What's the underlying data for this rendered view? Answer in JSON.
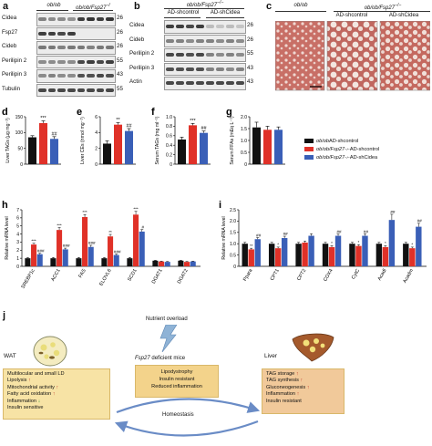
{
  "panels": {
    "a": {
      "letter": "a",
      "header_left": "ob/ob",
      "header_right": "ob/ob/Fsp27",
      "header_right_sup": "−/−",
      "rows": [
        "Cidea",
        "Fsp27",
        "Cideb",
        "Perilipin 2",
        "Perilipin 3",
        "Tubulin"
      ],
      "kda": [
        "26",
        "26",
        "26",
        "55",
        "43",
        "55"
      ]
    },
    "b": {
      "letter": "b",
      "header_top": "ob/ob/Fsp27",
      "header_top_sup": "−/−",
      "header_left": "AD-shcontrol",
      "header_right": "AD-shCidea",
      "rows": [
        "Cidea",
        "Cideb",
        "Perilipin 2",
        "Perilipin 3",
        "Actin"
      ],
      "kda": [
        "26",
        "26",
        "55",
        "43",
        "43"
      ]
    },
    "c": {
      "letter": "c",
      "header_left": "ob/ob",
      "header_right": "ob/ob/Fsp27",
      "header_right_sup": "−/−",
      "sub_left": "AD-shcontrol",
      "sub_right": "AD-shCidea"
    },
    "d": {
      "letter": "d",
      "ylabel": "Liver TAGs (µg mg⁻¹)",
      "yticks": [
        "0",
        "50",
        "100",
        "150"
      ],
      "ymax": 150,
      "values": [
        85,
        130,
        80
      ],
      "errors": [
        5,
        7,
        7
      ],
      "sig": [
        "",
        "***",
        "##"
      ]
    },
    "e": {
      "letter": "e",
      "ylabel": "Liver CEs (nmol mg⁻¹)",
      "yticks": [
        "0",
        "2",
        "4",
        "6"
      ],
      "ymax": 6,
      "values": [
        2.6,
        5.0,
        4.2
      ],
      "errors": [
        0.35,
        0.25,
        0.3
      ],
      "sig": [
        "",
        "**",
        "##"
      ]
    },
    "f": {
      "letter": "f",
      "ylabel": "Serum TAGs (mg ml⁻¹)",
      "yticks": [
        "0",
        "0.2",
        "0.4",
        "0.6",
        "0.8",
        "1.0"
      ],
      "ymax": 1.0,
      "values": [
        0.52,
        0.82,
        0.66
      ],
      "errors": [
        0.05,
        0.04,
        0.04
      ],
      "sig": [
        "",
        "***",
        "##"
      ]
    },
    "g": {
      "letter": "g",
      "ylabel": "Serum FFAs (mEq L⁻¹)",
      "yticks": [
        "0",
        "0.5",
        "1.0",
        "1.5",
        "2.0"
      ],
      "ymax": 2.0,
      "values": [
        1.55,
        1.45,
        1.45
      ],
      "errors": [
        0.22,
        0.15,
        0.12
      ],
      "sig": [
        "",
        "",
        ""
      ]
    },
    "legend": {
      "items": [
        {
          "prefix": "ob/ob",
          "suffix": " AD-shcontrol",
          "color": "#111111"
        },
        {
          "prefix": "ob/ob/Fsp27",
          "sup": "−/−",
          "suffix": " AD-shcontrol",
          "color": "#e03128"
        },
        {
          "prefix": "ob/ob/Fsp27",
          "sup": "−/−",
          "suffix": " AD-shCidea",
          "color": "#3a5fb7"
        }
      ]
    },
    "h": {
      "letter": "h",
      "ylabel": "Relative mRNA level",
      "yticks": [
        "0",
        "1",
        "2",
        "3",
        "4",
        "5",
        "6",
        "7"
      ],
      "ymax": 7,
      "genes": [
        "SREBP1c",
        "ACC1",
        "FAS",
        "ELOVL6",
        "SCD1",
        "DGAT1",
        "DGAT2"
      ],
      "values": [
        [
          1.0,
          2.7,
          1.5
        ],
        [
          1.0,
          4.5,
          2.1
        ],
        [
          1.0,
          6.1,
          2.4
        ],
        [
          1.0,
          3.7,
          1.4
        ],
        [
          1.0,
          6.4,
          4.3
        ],
        [
          0.7,
          0.6,
          0.55
        ],
        [
          0.7,
          0.55,
          0.6
        ]
      ],
      "errors": [
        [
          0.08,
          0.15,
          0.12
        ],
        [
          0.1,
          0.3,
          0.15
        ],
        [
          0.1,
          0.3,
          0.2
        ],
        [
          0.08,
          0.25,
          0.12
        ],
        [
          0.1,
          0.4,
          0.25
        ],
        [
          0.05,
          0.05,
          0.05
        ],
        [
          0.05,
          0.05,
          0.05
        ]
      ],
      "sig_red": [
        "***",
        "***",
        "***",
        "**",
        "***",
        "",
        ""
      ],
      "sig_blue": [
        "###",
        "###",
        "###",
        "###",
        "#",
        "",
        ""
      ]
    },
    "i": {
      "letter": "i",
      "ylabel": "Relative mRNA level",
      "yticks": [
        "0",
        "0.5",
        "1.0",
        "1.5",
        "2.0",
        "2.5"
      ],
      "ymax": 2.5,
      "genes": [
        "Ppara",
        "CPT1",
        "CPT2",
        "COX4",
        "CytC",
        "Acadl",
        "Acadm"
      ],
      "values": [
        [
          1.0,
          0.75,
          1.2
        ],
        [
          1.0,
          0.8,
          1.25
        ],
        [
          1.0,
          1.05,
          1.35
        ],
        [
          1.0,
          0.85,
          1.35
        ],
        [
          1.0,
          0.9,
          1.35
        ],
        [
          1.0,
          0.85,
          2.05
        ],
        [
          1.0,
          0.8,
          1.75
        ]
      ],
      "errors": [
        [
          0.06,
          0.05,
          0.07
        ],
        [
          0.06,
          0.05,
          0.08
        ],
        [
          0.06,
          0.07,
          0.09
        ],
        [
          0.06,
          0.06,
          0.08
        ],
        [
          0.06,
          0.06,
          0.08
        ],
        [
          0.06,
          0.06,
          0.25
        ],
        [
          0.06,
          0.05,
          0.15
        ]
      ],
      "sig_red": [
        "**",
        "*",
        "",
        "*",
        "*",
        "*",
        "*"
      ],
      "sig_blue": [
        "##",
        "##",
        "",
        "##",
        "##",
        "##",
        "##"
      ]
    },
    "j": {
      "letter": "j",
      "nutrient": "Nutrient overload",
      "mice_title_italic": "Fsp27",
      "mice_title_rest": " deficient mice",
      "center_lines": [
        "Lipodystrophy",
        "Insulin resistant",
        "Reduced inflammation"
      ],
      "homeostasis": "Homeostasis",
      "wat_label": "WAT",
      "liver_label": "Liver",
      "wat_lines": [
        {
          "text": "Multilocular and small LD",
          "arrow": ""
        },
        {
          "text": "Lipolysis",
          "arrow": "up"
        },
        {
          "text": "Mitochondrial activity",
          "arrow": "up"
        },
        {
          "text": "Fatty acid oxidation",
          "arrow": "up"
        },
        {
          "text": "Inflammation",
          "arrow": "down"
        },
        {
          "text": "Insulin sensitive",
          "arrow": ""
        }
      ],
      "liver_lines": [
        {
          "text": "TAG storage",
          "arrow": "up"
        },
        {
          "text": "TAG synthesis",
          "arrow": "up"
        },
        {
          "text": "Gluconeogenesis",
          "arrow": "up"
        },
        {
          "text": "Inflammation",
          "arrow": "up"
        },
        {
          "text": "Insulin resistant",
          "arrow": ""
        }
      ],
      "arrow_up_glyph": "↑",
      "arrow_down_glyph": "↓"
    }
  },
  "colors": {
    "black": "#111111",
    "red": "#e03128",
    "blue": "#3a5fb7",
    "box": "#f7e3a5",
    "histo_bg": "#d9c7bf",
    "histo_stain": "#b3534f"
  }
}
